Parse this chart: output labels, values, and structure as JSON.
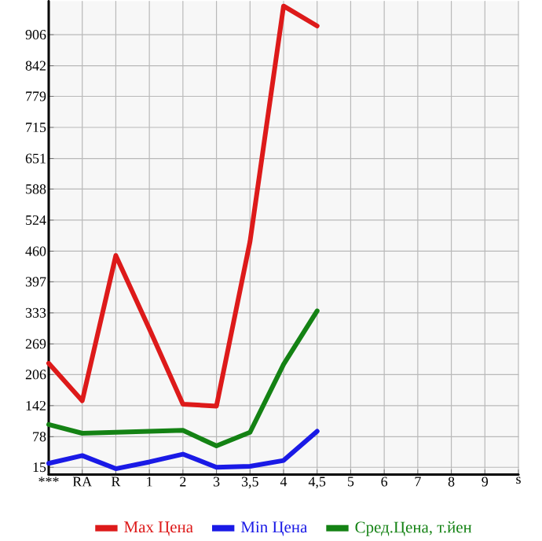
{
  "chart_data": {
    "type": "line",
    "categories": [
      "***",
      "RA",
      "R",
      "1",
      "2",
      "3",
      "3,5",
      "4",
      "4,5",
      "5",
      "6",
      "7",
      "8",
      "9",
      "s"
    ],
    "series": [
      {
        "name": "Max Цена",
        "color": "#dd1a1a",
        "values": [
          229,
          152,
          451,
          300,
          145,
          141,
          480,
          965,
          924,
          null,
          null,
          null,
          null,
          null,
          null
        ]
      },
      {
        "name": "Min Цена",
        "color": "#1a1ae6",
        "values": [
          23,
          39,
          12,
          26,
          42,
          15,
          17,
          29,
          89,
          null,
          null,
          null,
          null,
          null,
          null
        ]
      },
      {
        "name": "Сред.Цена, т.йен",
        "color": "#148214",
        "values": [
          103,
          85,
          87,
          89,
          91,
          59,
          87,
          227,
          337,
          null,
          null,
          null,
          null,
          null,
          null
        ]
      }
    ],
    "ylim": [
      0,
      975
    ],
    "yticks": [
      15,
      78,
      142,
      206,
      269,
      333,
      397,
      460,
      524,
      588,
      651,
      715,
      779,
      842,
      906
    ],
    "grid": true,
    "legend": "bottom",
    "marker": "none",
    "line_style": "solid"
  }
}
